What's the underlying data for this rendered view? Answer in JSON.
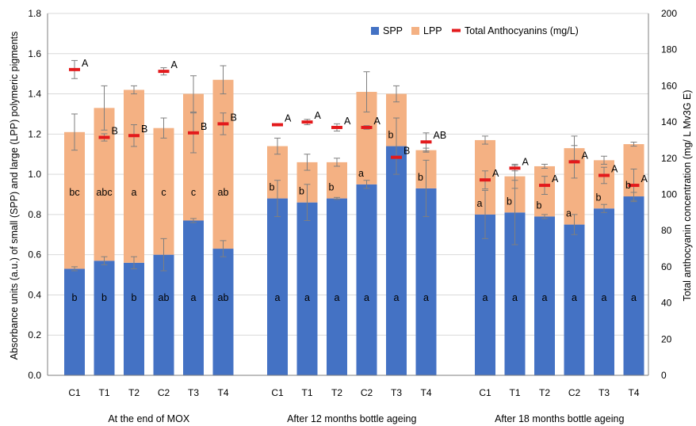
{
  "chart_data": {
    "type": "bar",
    "stacked": true,
    "y_left": {
      "label": "Absorbance units (a.u.) of small (SPP) and large (LPP) polymeric pigments",
      "lim": [
        0,
        1.8
      ],
      "ticks": [
        "0.0",
        "0.2",
        "0.4",
        "0.6",
        "0.8",
        "1.0",
        "1.2",
        "1.4",
        "1.6",
        "1.8"
      ]
    },
    "y_right": {
      "label": "Total anthocyanin concentration (mg/ L Mv3G E)",
      "lim": [
        0,
        200
      ],
      "ticks": [
        "0",
        "20",
        "40",
        "60",
        "80",
        "100",
        "120",
        "140",
        "160",
        "180",
        "200"
      ]
    },
    "legend": {
      "position": "top-right",
      "items": [
        "SPP",
        "LPP",
        "Total Anthocyanins (mg/L)"
      ]
    },
    "colors": {
      "spp": "#4472c4",
      "lpp": "#f4b183",
      "anthocyanin": "#e31a1c",
      "errorbar": "#7f7f7f"
    },
    "groups": [
      {
        "label": "At the end of MOX",
        "bars": [
          {
            "cat": "C1",
            "spp": 0.53,
            "spp_err": 0.01,
            "spp_letter": "b",
            "lpp": 0.68,
            "lpp_err": 0.09,
            "lpp_letter": "bc",
            "anth": 169,
            "anth_err": 5,
            "anth_letter": "A"
          },
          {
            "cat": "T1",
            "spp": 0.57,
            "spp_err": 0.02,
            "spp_letter": "b",
            "lpp": 0.76,
            "lpp_err": 0.11,
            "lpp_letter": "abc",
            "anth": 131.5,
            "anth_err": 2,
            "anth_letter": "B"
          },
          {
            "cat": "T2",
            "spp": 0.56,
            "spp_err": 0.03,
            "spp_letter": "b",
            "lpp": 0.86,
            "lpp_err": 0.02,
            "lpp_letter": "a",
            "anth": 132.5,
            "anth_err": 6,
            "anth_letter": "B"
          },
          {
            "cat": "C2",
            "spp": 0.6,
            "spp_err": 0.08,
            "spp_letter": "ab",
            "lpp": 0.63,
            "lpp_err": 0.05,
            "lpp_letter": "c",
            "anth": 168,
            "anth_err": 2,
            "anth_letter": "A"
          },
          {
            "cat": "T3",
            "spp": 0.77,
            "spp_err": 0.01,
            "spp_letter": "a",
            "lpp": 0.63,
            "lpp_err": 0.09,
            "lpp_letter": "c",
            "anth": 134,
            "anth_err": 11,
            "anth_letter": "B"
          },
          {
            "cat": "T4",
            "spp": 0.63,
            "spp_err": 0.04,
            "spp_letter": "ab",
            "lpp": 0.84,
            "lpp_err": 0.07,
            "lpp_letter": "ab",
            "anth": 139,
            "anth_err": 6,
            "anth_letter": "B"
          }
        ]
      },
      {
        "label": "After 12 months bottle ageing",
        "bars": [
          {
            "cat": "C1",
            "spp": 0.88,
            "spp_err": 0.09,
            "spp_letter": "a",
            "lpp": 0.26,
            "lpp_err": 0.04,
            "lpp_letter": "b",
            "anth": 138.5,
            "anth_err": 0.5,
            "anth_letter": "A"
          },
          {
            "cat": "T1",
            "spp": 0.86,
            "spp_err": 0.09,
            "spp_letter": "a",
            "lpp": 0.2,
            "lpp_err": 0.04,
            "lpp_letter": "b",
            "anth": 140,
            "anth_err": 1.5,
            "anth_letter": "A"
          },
          {
            "cat": "T2",
            "spp": 0.88,
            "spp_err": 0.005,
            "spp_letter": "a",
            "lpp": 0.18,
            "lpp_err": 0.02,
            "lpp_letter": "b",
            "anth": 137,
            "anth_err": 2,
            "anth_letter": "A"
          },
          {
            "cat": "C2",
            "spp": 0.95,
            "spp_err": 0.02,
            "spp_letter": "a",
            "lpp": 0.46,
            "lpp_err": 0.1,
            "lpp_letter": "a",
            "anth": 137,
            "anth_err": 1,
            "anth_letter": "A"
          },
          {
            "cat": "T3",
            "spp": 1.14,
            "spp_err": 0.14,
            "spp_letter": "a",
            "lpp": 0.26,
            "lpp_err": 0.04,
            "lpp_letter": "b",
            "anth": 120.5,
            "anth_err": 0.5,
            "anth_letter": "B"
          },
          {
            "cat": "T4",
            "spp": 0.93,
            "spp_err": 0.14,
            "spp_letter": "a",
            "lpp": 0.19,
            "lpp_err": 0.01,
            "lpp_letter": "b",
            "anth": 129,
            "anth_err": 5,
            "anth_letter": "AB"
          }
        ]
      },
      {
        "label": "After 18 months bottle ageing",
        "bars": [
          {
            "cat": "C1",
            "spp": 0.8,
            "spp_err": 0.12,
            "spp_letter": "a",
            "lpp": 0.37,
            "lpp_err": 0.02,
            "lpp_letter": "a",
            "anth": 108,
            "anth_err": 5,
            "anth_letter": "A"
          },
          {
            "cat": "T1",
            "spp": 0.81,
            "spp_err": 0.16,
            "spp_letter": "a",
            "lpp": 0.18,
            "lpp_err": 0.06,
            "lpp_letter": "b",
            "anth": 114.5,
            "anth_err": 1.5,
            "anth_letter": "A"
          },
          {
            "cat": "T2",
            "spp": 0.79,
            "spp_err": 0.01,
            "spp_letter": "a",
            "lpp": 0.25,
            "lpp_err": 0.01,
            "lpp_letter": "b",
            "anth": 105,
            "anth_err": 5,
            "anth_letter": "A"
          },
          {
            "cat": "C2",
            "spp": 0.75,
            "spp_err": 0.05,
            "spp_letter": "a",
            "lpp": 0.38,
            "lpp_err": 0.06,
            "lpp_letter": "a",
            "anth": 118,
            "anth_err": 9,
            "anth_letter": "A"
          },
          {
            "cat": "T3",
            "spp": 0.83,
            "spp_err": 0.02,
            "spp_letter": "a",
            "lpp": 0.24,
            "lpp_err": 0.02,
            "lpp_letter": "b",
            "anth": 110.5,
            "anth_err": 4.5,
            "anth_letter": "A"
          },
          {
            "cat": "T4",
            "spp": 0.89,
            "spp_err": 0.02,
            "spp_letter": "a",
            "lpp": 0.26,
            "lpp_err": 0.01,
            "lpp_letter": "b",
            "anth": 105,
            "anth_err": 9,
            "anth_letter": "A"
          }
        ]
      }
    ]
  }
}
